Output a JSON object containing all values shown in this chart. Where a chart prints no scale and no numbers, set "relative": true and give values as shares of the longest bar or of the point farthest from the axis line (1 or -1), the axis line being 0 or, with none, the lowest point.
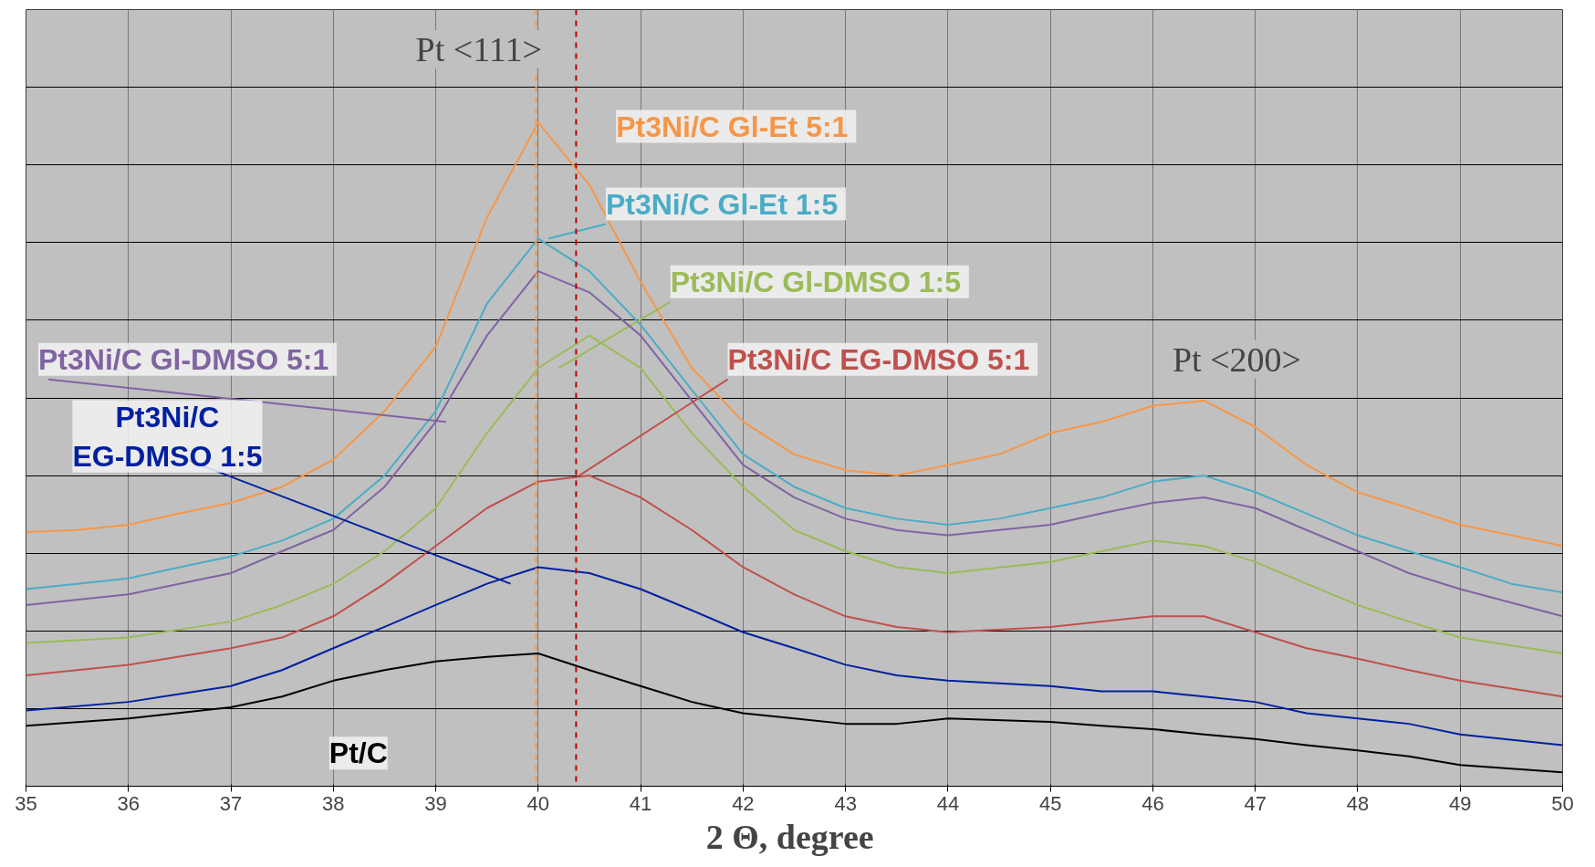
{
  "chart_data": {
    "type": "line",
    "relative": true,
    "xlabel": "2 Θ,  degree",
    "xlim": [
      35,
      50
    ],
    "xticks": [
      35,
      36,
      37,
      38,
      39,
      40,
      41,
      42,
      43,
      44,
      45,
      46,
      47,
      48,
      49,
      50
    ],
    "x": [
      35,
      36,
      37,
      37.5,
      38,
      38.5,
      39,
      39.5,
      40,
      40.5,
      41,
      41.5,
      42,
      42.5,
      43,
      43.5,
      44,
      45,
      45.5,
      46,
      46.5,
      47,
      47.5,
      48,
      48.5,
      49,
      50
    ],
    "grid": true,
    "legend": false,
    "marker": "none",
    "line_style": "solid",
    "series": [
      {
        "name": "Pt3Ni/C  Gl-Et 5:1",
        "color": "#f79646",
        "x": [
          35,
          35.5,
          36,
          36.5,
          37,
          37.5,
          38,
          38.5,
          39,
          39.5,
          40,
          40.5,
          41,
          41.5,
          42,
          42.5,
          43,
          43.5,
          44,
          44.5,
          45,
          45.5,
          46,
          46.5,
          47,
          47.5,
          48,
          48.5,
          49,
          49.5,
          50
        ],
        "values": [
          0.383,
          0.386,
          0.394,
          0.411,
          0.427,
          0.451,
          0.492,
          0.565,
          0.662,
          0.857,
          1.0,
          0.906,
          0.76,
          0.63,
          0.549,
          0.5,
          0.476,
          0.468,
          0.484,
          0.5,
          0.532,
          0.549,
          0.573,
          0.581,
          0.541,
          0.484,
          0.443,
          0.419,
          0.394,
          0.378,
          0.362
        ]
      },
      {
        "name": "Pt3Ni/C  Gl-Et 1:5",
        "color": "#4bacc6",
        "x": [
          35,
          35.5,
          36,
          36.5,
          37,
          37.5,
          38,
          38.5,
          39,
          39.5,
          40,
          40.5,
          41,
          41.5,
          42,
          42.5,
          43,
          43.5,
          44,
          44.5,
          45,
          45.5,
          46,
          46.5,
          47,
          47.5,
          48,
          48.5,
          49,
          49.5,
          50
        ],
        "values": [
          0.297,
          0.305,
          0.313,
          0.33,
          0.346,
          0.37,
          0.403,
          0.468,
          0.565,
          0.727,
          0.825,
          0.776,
          0.695,
          0.597,
          0.5,
          0.451,
          0.419,
          0.403,
          0.394,
          0.403,
          0.419,
          0.435,
          0.459,
          0.468,
          0.443,
          0.411,
          0.378,
          0.354,
          0.33,
          0.305,
          0.292
        ]
      },
      {
        "name": "Pt3Ni/C  Gl-DMSO 1:5",
        "color": "#9bbb59",
        "values": [
          0.216,
          0.224,
          0.248,
          0.273,
          0.305,
          0.354,
          0.419,
          0.532,
          0.63,
          0.679,
          0.63,
          0.532,
          0.451,
          0.386,
          0.354,
          0.33,
          0.321,
          0.338,
          0.354,
          0.37,
          0.362,
          0.338,
          0.305,
          0.273,
          0.248,
          0.224,
          0.2
        ]
      },
      {
        "name": "Pt3Ni/C  Gl-DMSO 5:1",
        "color": "#8064a2",
        "values": [
          0.273,
          0.289,
          0.321,
          0.354,
          0.386,
          0.451,
          0.549,
          0.679,
          0.776,
          0.744,
          0.679,
          0.581,
          0.484,
          0.435,
          0.403,
          0.386,
          0.378,
          0.394,
          0.411,
          0.427,
          0.435,
          0.419,
          0.386,
          0.354,
          0.321,
          0.297,
          0.256
        ]
      },
      {
        "name": "Pt3Ni/C  EG-DMSO 5:1",
        "color": "#c0504d",
        "values": [
          0.167,
          0.183,
          0.208,
          0.224,
          0.256,
          0.305,
          0.362,
          0.419,
          0.459,
          0.468,
          0.435,
          0.386,
          0.33,
          0.289,
          0.256,
          0.24,
          0.232,
          0.24,
          0.248,
          0.256,
          0.256,
          0.232,
          0.208,
          0.192,
          0.175,
          0.159,
          0.135
        ]
      },
      {
        "name": "Pt3Ni/C\nEG-DMSO 1:5",
        "color": "#00209f",
        "values": [
          0.114,
          0.127,
          0.151,
          0.175,
          0.208,
          0.24,
          0.273,
          0.305,
          0.33,
          0.321,
          0.297,
          0.265,
          0.232,
          0.208,
          0.183,
          0.167,
          0.159,
          0.151,
          0.143,
          0.143,
          0.135,
          0.127,
          0.11,
          0.102,
          0.094,
          0.078,
          0.062
        ]
      },
      {
        "name": "Pt/C",
        "color": "#000000",
        "values": [
          0.091,
          0.102,
          0.119,
          0.135,
          0.159,
          0.175,
          0.188,
          0.195,
          0.2,
          0.175,
          0.151,
          0.127,
          0.11,
          0.102,
          0.094,
          0.094,
          0.102,
          0.097,
          0.091,
          0.086,
          0.078,
          0.071,
          0.062,
          0.054,
          0.045,
          0.032,
          0.021
        ]
      }
    ],
    "ref_lines": [
      {
        "axis": "x",
        "value": 39.98,
        "color": "#f79646",
        "line_style": "dashed"
      },
      {
        "axis": "x",
        "value": 40.37,
        "color": "#c00000",
        "line_style": "dashed"
      }
    ],
    "annotations": [
      "Pt <111>",
      "Pt <200>"
    ]
  }
}
